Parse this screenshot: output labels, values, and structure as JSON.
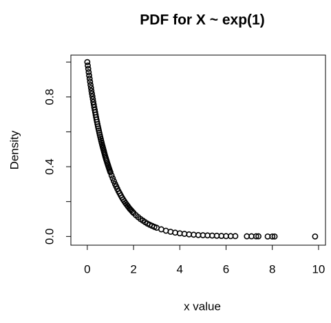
{
  "chart_data": {
    "type": "scatter",
    "title": "PDF for X ~ exp(1)",
    "x_label": "x value",
    "y_label": "Density",
    "x": [
      0,
      0.02,
      0.04,
      0.06,
      0.08,
      0.1,
      0.12,
      0.14,
      0.16,
      0.18,
      0.2,
      0.22,
      0.24,
      0.26,
      0.28,
      0.3,
      0.32,
      0.34,
      0.36,
      0.38,
      0.4,
      0.42,
      0.44,
      0.46,
      0.48,
      0.5,
      0.52,
      0.54,
      0.56,
      0.58,
      0.6,
      0.62,
      0.64,
      0.66,
      0.68,
      0.7,
      0.72,
      0.74,
      0.76,
      0.78,
      0.8,
      0.82,
      0.84,
      0.86,
      0.88,
      0.9,
      0.92,
      0.94,
      0.96,
      0.98,
      1,
      1.05,
      1.1,
      1.15,
      1.2,
      1.25,
      1.3,
      1.35,
      1.4,
      1.45,
      1.5,
      1.55,
      1.6,
      1.65,
      1.7,
      1.75,
      1.8,
      1.85,
      1.9,
      1.95,
      2,
      2.1,
      2.2,
      2.3,
      2.4,
      2.5,
      2.6,
      2.7,
      2.8,
      2.9,
      3,
      3.2,
      3.4,
      3.6,
      3.8,
      4,
      4.2,
      4.4,
      4.6,
      4.8,
      5,
      5.2,
      5.4,
      5.6,
      5.8,
      6,
      6.2,
      6.4,
      6.9,
      7.1,
      7.3,
      7.4,
      7.8,
      8,
      8.1,
      9.85
    ],
    "y": [
      1,
      0.98,
      0.961,
      0.942,
      0.923,
      0.905,
      0.887,
      0.869,
      0.852,
      0.835,
      0.819,
      0.803,
      0.787,
      0.771,
      0.756,
      0.741,
      0.726,
      0.712,
      0.698,
      0.684,
      0.67,
      0.657,
      0.644,
      0.631,
      0.619,
      0.607,
      0.595,
      0.583,
      0.571,
      0.56,
      0.549,
      0.538,
      0.527,
      0.517,
      0.507,
      0.497,
      0.487,
      0.477,
      0.468,
      0.458,
      0.449,
      0.44,
      0.432,
      0.423,
      0.415,
      0.407,
      0.399,
      0.391,
      0.383,
      0.375,
      0.368,
      0.35,
      0.333,
      0.317,
      0.301,
      0.287,
      0.273,
      0.259,
      0.247,
      0.235,
      0.223,
      0.212,
      0.202,
      0.192,
      0.183,
      0.174,
      0.165,
      0.157,
      0.15,
      0.142,
      0.135,
      0.122,
      0.111,
      0.1,
      0.091,
      0.082,
      0.074,
      0.067,
      0.061,
      0.055,
      0.05,
      0.041,
      0.033,
      0.027,
      0.022,
      0.018,
      0.015,
      0.012,
      0.01,
      0.008,
      0.007,
      0.006,
      0.005,
      0.004,
      0.003,
      0.002,
      0.002,
      0.002,
      0.001,
      0.001,
      0.001,
      0.001,
      0,
      0,
      0,
      0
    ],
    "color": "#000000",
    "xlim": [
      -0.71,
      10.3
    ],
    "ylim": [
      -0.05,
      1.04
    ],
    "xticks": [
      0,
      2,
      4,
      6,
      8,
      10
    ],
    "yticks": [
      {
        "value": 0,
        "label": "0.0"
      },
      {
        "value": 0.2,
        "label": null
      },
      {
        "value": 0.4,
        "label": "0.4"
      },
      {
        "value": 0.6,
        "label": null
      },
      {
        "value": 0.8,
        "label": "0.8"
      },
      {
        "value": 1,
        "label": null
      }
    ]
  }
}
